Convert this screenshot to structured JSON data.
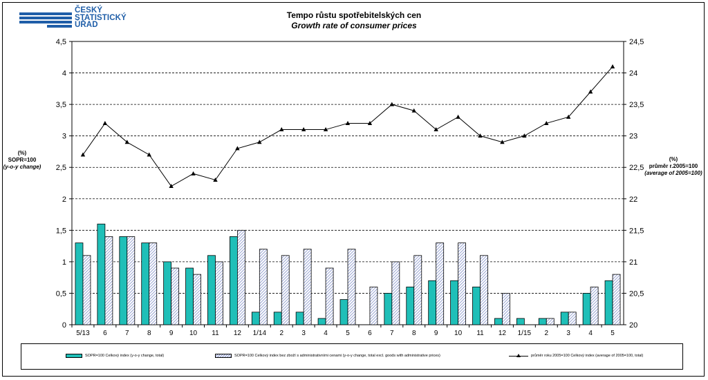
{
  "logo": {
    "lines": [
      "ČESKÝ",
      "STATISTICKÝ",
      "ÚŘAD"
    ]
  },
  "header": {
    "title": "Tempo růstu spotřebitelských cen",
    "subtitle": "Growth rate of consumer prices"
  },
  "axes": {
    "left_title": [
      "(%)",
      "SOPR=100",
      "(y-o-y change)"
    ],
    "right_title": [
      "(%)",
      "průměr r.2005=100",
      "(average of 2005=100)"
    ]
  },
  "legend": {
    "bar1": "SOPR=100 Celkový index (y-o-y change, total)",
    "bar2": "SOPR=100 Celkový index bez zboží s administrativními cenami (y-o-y change, total excl. goods with administrative prices)",
    "line": "průměr roku 2005=100 Celkový index (average of 2005=100, total)"
  },
  "colors": {
    "bar1": "#1fbfb8",
    "bar2_hatch": "#7d8cc6",
    "line": "#000000",
    "brand": "#1f5ea8"
  },
  "chart_data": {
    "type": "bar",
    "categories": [
      "5/13",
      "6",
      "7",
      "8",
      "9",
      "10",
      "11",
      "12",
      "1/14",
      "2",
      "3",
      "4",
      "5",
      "6",
      "7",
      "8",
      "9",
      "10",
      "11",
      "12",
      "1/15",
      "2",
      "3",
      "4",
      "5"
    ],
    "series": [
      {
        "name": "SOPR=100 Celkový index (y-o-y change, total)",
        "axis": "left",
        "values": [
          1.3,
          1.6,
          1.4,
          1.3,
          1.0,
          0.9,
          1.1,
          1.4,
          0.2,
          0.2,
          0.2,
          0.1,
          0.4,
          0.0,
          0.5,
          0.6,
          0.7,
          0.7,
          0.6,
          0.1,
          0.1,
          0.1,
          0.2,
          0.5,
          0.7
        ]
      },
      {
        "name": "SOPR=100 Celkový index bez zboží s administrativními cenami (y-o-y change, total excl. goods with administrative prices)",
        "axis": "left",
        "values": [
          1.1,
          1.4,
          1.4,
          1.3,
          0.9,
          0.8,
          1.0,
          1.5,
          1.2,
          1.1,
          1.2,
          0.9,
          1.2,
          0.6,
          1.0,
          1.1,
          1.3,
          1.3,
          1.1,
          0.5,
          0.0,
          0.1,
          0.2,
          0.6,
          0.8
        ]
      },
      {
        "name": "průměr roku 2005=100 Celkový index (average of 2005=100, total)",
        "axis": "right",
        "type": "line",
        "values": [
          22.7,
          23.2,
          22.9,
          22.7,
          22.2,
          22.4,
          22.3,
          22.8,
          22.9,
          23.1,
          23.1,
          23.1,
          23.2,
          23.2,
          23.5,
          23.4,
          23.1,
          23.3,
          23.0,
          22.9,
          23.0,
          23.2,
          23.3,
          23.7,
          24.1
        ]
      }
    ],
    "y_left": {
      "min": 0,
      "max": 4.5,
      "ticks": [
        "0",
        "0,5",
        "1",
        "1,5",
        "2",
        "2,5",
        "3",
        "3,5",
        "4",
        "4,5"
      ]
    },
    "y_right": {
      "min": 20,
      "max": 24.5,
      "ticks": [
        "20",
        "20,5",
        "21",
        "21,5",
        "22",
        "22,5",
        "23",
        "23,5",
        "24",
        "24,5"
      ]
    },
    "grid": "horizontal-dashed"
  }
}
